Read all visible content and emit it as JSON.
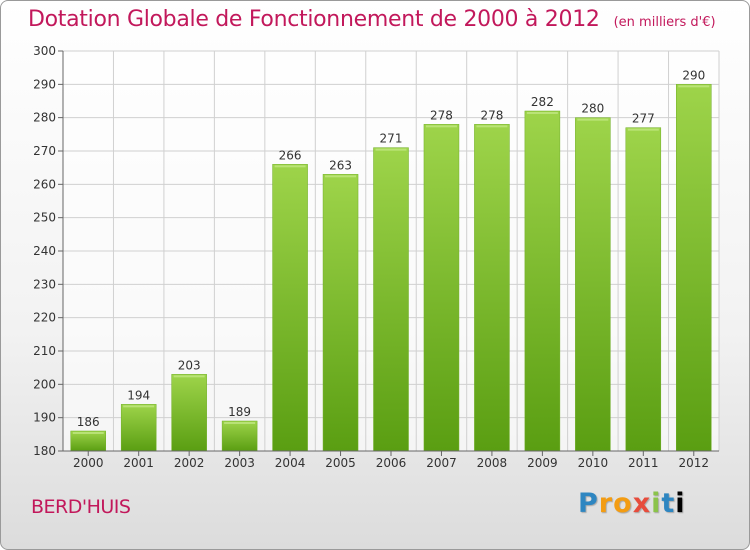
{
  "title": "Dotation Globale de Fonctionnement de 2000 à 2012",
  "unit_label": "(en milliers d'€)",
  "commune": "BERD'HUIS",
  "logo": [
    "P",
    "r",
    "o",
    "x",
    "i",
    "t",
    "i"
  ],
  "colors": {
    "accent": "#c2185b",
    "bar_top": "#9ed44a",
    "bar_bottom": "#5a9e12"
  },
  "chart_data": {
    "type": "bar",
    "title": "Dotation Globale de Fonctionnement de 2000 à 2012",
    "xlabel": "",
    "ylabel": "",
    "categories": [
      "2000",
      "2001",
      "2002",
      "2003",
      "2004",
      "2005",
      "2006",
      "2007",
      "2008",
      "2009",
      "2010",
      "2011",
      "2012"
    ],
    "values": [
      186,
      194,
      203,
      189,
      266,
      263,
      271,
      278,
      278,
      282,
      280,
      277,
      290
    ],
    "ylim": [
      180,
      300
    ],
    "yticks": [
      180,
      190,
      200,
      210,
      220,
      230,
      240,
      250,
      260,
      270,
      280,
      290,
      300
    ],
    "grid": true
  }
}
